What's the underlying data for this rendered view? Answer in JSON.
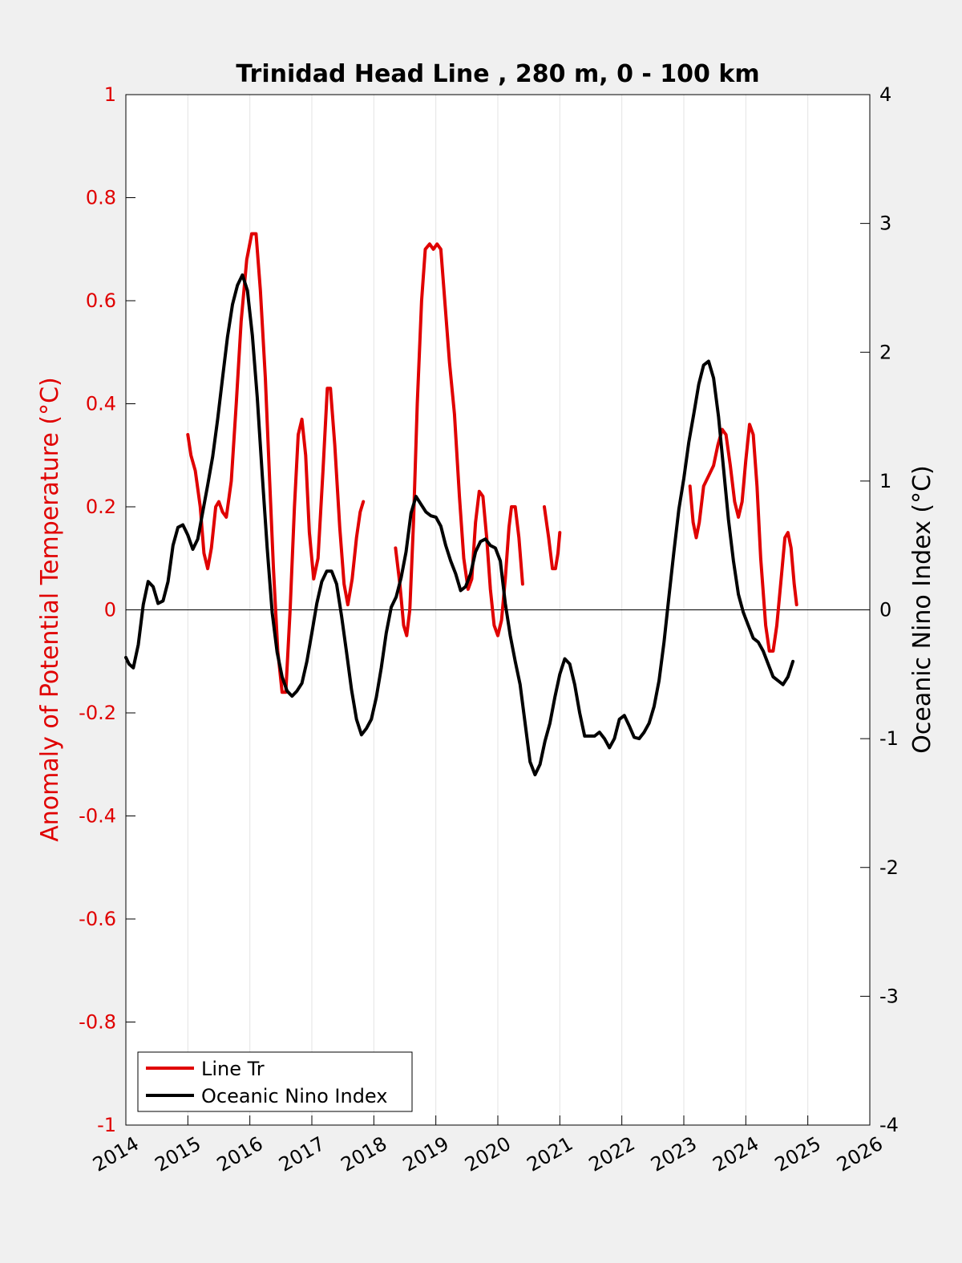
{
  "chart_data": {
    "type": "line",
    "title": "Trinidad Head Line , 280 m, 0 - 100 km",
    "xlabel": "",
    "ylabel_left": "Anomaly of Potential Temperature (°C)",
    "ylabel_right": "Oceanic Nino Index (°C)",
    "xlim": [
      2014,
      2026
    ],
    "ylim_left": [
      -1,
      1
    ],
    "ylim_right": [
      -4,
      4
    ],
    "x_ticks": [
      "2014",
      "2015",
      "2016",
      "2017",
      "2018",
      "2019",
      "2020",
      "2021",
      "2022",
      "2023",
      "2024",
      "2025",
      "2026"
    ],
    "y_ticks_left": [
      "-1",
      "-0.8",
      "-0.6",
      "-0.4",
      "-0.2",
      "0",
      "0.2",
      "0.4",
      "0.6",
      "0.8",
      "1"
    ],
    "y_ticks_right": [
      "-4",
      "-3",
      "-2",
      "-1",
      "0",
      "1",
      "2",
      "3",
      "4"
    ],
    "grid": "vertical",
    "legend_position": "bottom-left",
    "colors": {
      "left_axis": "#e00000",
      "series_line_tr": "#e00000",
      "series_oni": "#000000",
      "plot_bg": "#ffffff",
      "figure_bg": "#f0f0f0"
    },
    "series": [
      {
        "name": "Line Tr",
        "axis": "left",
        "segments": [
          [
            [
              2015.0,
              0.34
            ],
            [
              2015.05,
              0.3
            ],
            [
              2015.12,
              0.27
            ],
            [
              2015.2,
              0.2
            ],
            [
              2015.26,
              0.11
            ],
            [
              2015.32,
              0.08
            ],
            [
              2015.38,
              0.12
            ],
            [
              2015.45,
              0.2
            ],
            [
              2015.5,
              0.21
            ],
            [
              2015.56,
              0.19
            ],
            [
              2015.62,
              0.18
            ],
            [
              2015.7,
              0.25
            ],
            [
              2015.78,
              0.4
            ],
            [
              2015.86,
              0.56
            ],
            [
              2015.95,
              0.68
            ],
            [
              2016.03,
              0.73
            ],
            [
              2016.1,
              0.73
            ],
            [
              2016.17,
              0.62
            ],
            [
              2016.25,
              0.45
            ],
            [
              2016.32,
              0.25
            ],
            [
              2016.38,
              0.08
            ],
            [
              2016.45,
              -0.08
            ],
            [
              2016.52,
              -0.16
            ],
            [
              2016.58,
              -0.16
            ],
            [
              2016.65,
              0.0
            ],
            [
              2016.72,
              0.2
            ],
            [
              2016.78,
              0.34
            ],
            [
              2016.84,
              0.37
            ],
            [
              2016.9,
              0.3
            ],
            [
              2016.96,
              0.15
            ],
            [
              2017.03,
              0.06
            ],
            [
              2017.1,
              0.1
            ],
            [
              2017.18,
              0.27
            ],
            [
              2017.25,
              0.43
            ],
            [
              2017.3,
              0.43
            ],
            [
              2017.37,
              0.32
            ],
            [
              2017.45,
              0.16
            ],
            [
              2017.52,
              0.05
            ],
            [
              2017.58,
              0.01
            ],
            [
              2017.65,
              0.06
            ],
            [
              2017.72,
              0.14
            ],
            [
              2017.78,
              0.19
            ],
            [
              2017.83,
              0.21
            ]
          ],
          [
            [
              2018.35,
              0.12
            ],
            [
              2018.42,
              0.05
            ],
            [
              2018.48,
              -0.03
            ],
            [
              2018.53,
              -0.05
            ],
            [
              2018.58,
              0.0
            ],
            [
              2018.64,
              0.17
            ],
            [
              2018.7,
              0.4
            ],
            [
              2018.77,
              0.6
            ],
            [
              2018.83,
              0.7
            ],
            [
              2018.9,
              0.71
            ],
            [
              2018.96,
              0.7
            ],
            [
              2019.02,
              0.71
            ],
            [
              2019.08,
              0.7
            ],
            [
              2019.15,
              0.59
            ],
            [
              2019.22,
              0.48
            ],
            [
              2019.3,
              0.38
            ],
            [
              2019.38,
              0.22
            ],
            [
              2019.45,
              0.1
            ],
            [
              2019.52,
              0.04
            ],
            [
              2019.58,
              0.06
            ],
            [
              2019.64,
              0.17
            ],
            [
              2019.7,
              0.23
            ],
            [
              2019.76,
              0.22
            ],
            [
              2019.82,
              0.14
            ],
            [
              2019.88,
              0.04
            ],
            [
              2019.94,
              -0.03
            ],
            [
              2020.0,
              -0.05
            ],
            [
              2020.06,
              -0.02
            ],
            [
              2020.12,
              0.06
            ],
            [
              2020.18,
              0.16
            ],
            [
              2020.22,
              0.2
            ],
            [
              2020.28,
              0.2
            ],
            [
              2020.34,
              0.14
            ],
            [
              2020.4,
              0.05
            ]
          ],
          [
            [
              2020.75,
              0.2
            ],
            [
              2020.82,
              0.14
            ],
            [
              2020.88,
              0.08
            ],
            [
              2020.93,
              0.08
            ],
            [
              2020.97,
              0.11
            ],
            [
              2021.0,
              0.15
            ]
          ],
          [
            [
              2023.1,
              0.24
            ],
            [
              2023.15,
              0.17
            ],
            [
              2023.2,
              0.14
            ],
            [
              2023.25,
              0.17
            ],
            [
              2023.32,
              0.24
            ],
            [
              2023.4,
              0.26
            ],
            [
              2023.48,
              0.28
            ],
            [
              2023.55,
              0.32
            ],
            [
              2023.62,
              0.35
            ],
            [
              2023.68,
              0.34
            ],
            [
              2023.75,
              0.28
            ],
            [
              2023.82,
              0.21
            ],
            [
              2023.88,
              0.18
            ],
            [
              2023.94,
              0.21
            ],
            [
              2024.0,
              0.29
            ],
            [
              2024.06,
              0.36
            ],
            [
              2024.12,
              0.34
            ],
            [
              2024.18,
              0.24
            ],
            [
              2024.24,
              0.1
            ],
            [
              2024.32,
              -0.03
            ],
            [
              2024.38,
              -0.08
            ],
            [
              2024.44,
              -0.08
            ],
            [
              2024.5,
              -0.03
            ],
            [
              2024.57,
              0.06
            ],
            [
              2024.63,
              0.14
            ],
            [
              2024.68,
              0.15
            ],
            [
              2024.73,
              0.12
            ],
            [
              2024.78,
              0.05
            ],
            [
              2024.82,
              0.01
            ]
          ]
        ]
      },
      {
        "name": "Oceanic Nino Index",
        "axis": "right",
        "segments": [
          [
            [
              2014.0,
              -0.37
            ],
            [
              2014.05,
              -0.42
            ],
            [
              2014.12,
              -0.45
            ],
            [
              2014.2,
              -0.27
            ],
            [
              2014.28,
              0.04
            ],
            [
              2014.36,
              0.22
            ],
            [
              2014.44,
              0.18
            ],
            [
              2014.52,
              0.05
            ],
            [
              2014.6,
              0.07
            ],
            [
              2014.68,
              0.22
            ],
            [
              2014.76,
              0.5
            ],
            [
              2014.84,
              0.64
            ],
            [
              2014.92,
              0.66
            ],
            [
              2015.0,
              0.58
            ],
            [
              2015.08,
              0.47
            ],
            [
              2015.16,
              0.55
            ],
            [
              2015.24,
              0.76
            ],
            [
              2015.32,
              0.97
            ],
            [
              2015.4,
              1.19
            ],
            [
              2015.48,
              1.48
            ],
            [
              2015.56,
              1.8
            ],
            [
              2015.64,
              2.12
            ],
            [
              2015.72,
              2.37
            ],
            [
              2015.8,
              2.52
            ],
            [
              2015.88,
              2.6
            ],
            [
              2015.96,
              2.48
            ],
            [
              2016.04,
              2.13
            ],
            [
              2016.12,
              1.65
            ],
            [
              2016.2,
              1.05
            ],
            [
              2016.28,
              0.48
            ],
            [
              2016.36,
              -0.02
            ],
            [
              2016.44,
              -0.33
            ],
            [
              2016.52,
              -0.52
            ],
            [
              2016.6,
              -0.63
            ],
            [
              2016.68,
              -0.67
            ],
            [
              2016.76,
              -0.63
            ],
            [
              2016.84,
              -0.57
            ],
            [
              2016.92,
              -0.4
            ],
            [
              2017.0,
              -0.18
            ],
            [
              2017.08,
              0.05
            ],
            [
              2017.16,
              0.22
            ],
            [
              2017.24,
              0.3
            ],
            [
              2017.32,
              0.3
            ],
            [
              2017.4,
              0.2
            ],
            [
              2017.48,
              -0.05
            ],
            [
              2017.56,
              -0.33
            ],
            [
              2017.64,
              -0.62
            ],
            [
              2017.72,
              -0.85
            ],
            [
              2017.8,
              -0.97
            ],
            [
              2017.88,
              -0.92
            ],
            [
              2017.96,
              -0.85
            ],
            [
              2018.04,
              -0.68
            ],
            [
              2018.12,
              -0.45
            ],
            [
              2018.2,
              -0.18
            ],
            [
              2018.28,
              0.02
            ],
            [
              2018.36,
              0.1
            ],
            [
              2018.44,
              0.25
            ],
            [
              2018.52,
              0.45
            ],
            [
              2018.6,
              0.75
            ],
            [
              2018.68,
              0.88
            ],
            [
              2018.76,
              0.82
            ],
            [
              2018.84,
              0.76
            ],
            [
              2018.92,
              0.73
            ],
            [
              2019.0,
              0.72
            ],
            [
              2019.08,
              0.65
            ],
            [
              2019.16,
              0.5
            ],
            [
              2019.24,
              0.38
            ],
            [
              2019.32,
              0.28
            ],
            [
              2019.4,
              0.15
            ],
            [
              2019.48,
              0.18
            ],
            [
              2019.56,
              0.28
            ],
            [
              2019.64,
              0.45
            ],
            [
              2019.72,
              0.53
            ],
            [
              2019.8,
              0.55
            ],
            [
              2019.88,
              0.5
            ],
            [
              2019.96,
              0.48
            ],
            [
              2020.04,
              0.38
            ],
            [
              2020.12,
              0.05
            ],
            [
              2020.2,
              -0.2
            ],
            [
              2020.28,
              -0.4
            ],
            [
              2020.36,
              -0.58
            ],
            [
              2020.44,
              -0.88
            ],
            [
              2020.52,
              -1.18
            ],
            [
              2020.6,
              -1.28
            ],
            [
              2020.68,
              -1.2
            ],
            [
              2020.76,
              -1.02
            ],
            [
              2020.84,
              -0.88
            ],
            [
              2020.92,
              -0.68
            ],
            [
              2021.0,
              -0.5
            ],
            [
              2021.08,
              -0.38
            ],
            [
              2021.16,
              -0.42
            ],
            [
              2021.24,
              -0.58
            ],
            [
              2021.32,
              -0.8
            ],
            [
              2021.4,
              -0.98
            ],
            [
              2021.48,
              -0.98
            ],
            [
              2021.56,
              -0.98
            ],
            [
              2021.64,
              -0.95
            ],
            [
              2021.72,
              -1.0
            ],
            [
              2021.8,
              -1.07
            ],
            [
              2021.88,
              -1.0
            ],
            [
              2021.96,
              -0.85
            ],
            [
              2022.04,
              -0.82
            ],
            [
              2022.12,
              -0.9
            ],
            [
              2022.2,
              -0.99
            ],
            [
              2022.28,
              -1.0
            ],
            [
              2022.36,
              -0.95
            ],
            [
              2022.44,
              -0.88
            ],
            [
              2022.52,
              -0.75
            ],
            [
              2022.6,
              -0.55
            ],
            [
              2022.68,
              -0.25
            ],
            [
              2022.76,
              0.1
            ],
            [
              2022.84,
              0.45
            ],
            [
              2022.92,
              0.78
            ],
            [
              2023.0,
              1.02
            ],
            [
              2023.08,
              1.3
            ],
            [
              2023.16,
              1.52
            ],
            [
              2023.24,
              1.75
            ],
            [
              2023.32,
              1.9
            ],
            [
              2023.4,
              1.93
            ],
            [
              2023.48,
              1.8
            ],
            [
              2023.56,
              1.5
            ],
            [
              2023.64,
              1.1
            ],
            [
              2023.72,
              0.7
            ],
            [
              2023.8,
              0.38
            ],
            [
              2023.88,
              0.12
            ],
            [
              2023.96,
              -0.02
            ],
            [
              2024.04,
              -0.12
            ],
            [
              2024.12,
              -0.22
            ],
            [
              2024.2,
              -0.25
            ],
            [
              2024.28,
              -0.32
            ],
            [
              2024.36,
              -0.42
            ],
            [
              2024.44,
              -0.52
            ],
            [
              2024.52,
              -0.55
            ],
            [
              2024.6,
              -0.58
            ],
            [
              2024.68,
              -0.52
            ],
            [
              2024.76,
              -0.4
            ]
          ]
        ]
      }
    ]
  },
  "legend": {
    "items": [
      {
        "label": "Line Tr",
        "color": "#e00000"
      },
      {
        "label": "Oceanic Nino Index",
        "color": "#000000"
      }
    ]
  }
}
